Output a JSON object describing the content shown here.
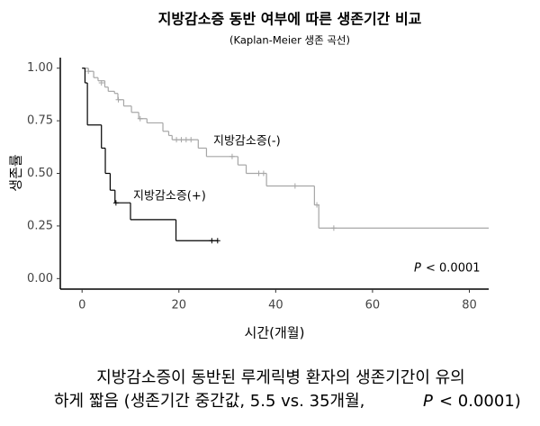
{
  "chart_data": {
    "type": "step",
    "title": "지방감소증 동반 여부에 따른 생존기간 비교",
    "subtitle": "(Kaplan-Meier 생존 곡선)",
    "x_label": "시간(개월)",
    "y_label": "생존률",
    "xlim": [
      -4.5,
      84
    ],
    "ylim": [
      -0.05,
      1.05
    ],
    "xticks": [
      0,
      20,
      40,
      60,
      80
    ],
    "yticks": [
      {
        "value": 0,
        "label": "0.00"
      },
      {
        "value": 0.25,
        "label": "0.25"
      },
      {
        "value": 0.5,
        "label": "0.50"
      },
      {
        "value": 0.75,
        "label": "0.75"
      },
      {
        "value": 1,
        "label": "1.00"
      }
    ],
    "series": [
      {
        "name": "지방감소증(-)",
        "color": "#a6a6a6",
        "x": [
          0,
          1.3,
          2.4,
          3.3,
          4.7,
          5.4,
          6.7,
          7.4,
          8.6,
          10.2,
          11.7,
          13.4,
          16.7,
          17.9,
          18.6,
          24,
          25.7,
          32.2,
          33.9,
          38.1,
          48,
          48.9,
          84
        ],
        "values": [
          1,
          0.985,
          0.955,
          0.94,
          0.91,
          0.89,
          0.88,
          0.85,
          0.82,
          0.79,
          0.76,
          0.74,
          0.7,
          0.68,
          0.66,
          0.62,
          0.58,
          0.54,
          0.5,
          0.44,
          0.35,
          0.24,
          0.24
        ],
        "censor_x": [
          1.3,
          4,
          7.5,
          12,
          19.5,
          20.5,
          21.5,
          22.5,
          31,
          36.5,
          37.5,
          44,
          48.5,
          52
        ],
        "censor_y": [
          0.985,
          0.93,
          0.85,
          0.76,
          0.66,
          0.66,
          0.66,
          0.66,
          0.58,
          0.5,
          0.5,
          0.44,
          0.35,
          0.24
        ]
      },
      {
        "name": "지방감소증(+)",
        "color": "#000000",
        "x": [
          0,
          0.6,
          1.1,
          4,
          4.8,
          5.8,
          6.8,
          10,
          19.4,
          28
        ],
        "values": [
          1,
          0.93,
          0.73,
          0.62,
          0.5,
          0.42,
          0.36,
          0.28,
          0.18,
          0.18
        ],
        "censor_x": [
          7,
          26.8,
          28
        ],
        "censor_y": [
          0.36,
          0.18,
          0.18
        ]
      }
    ],
    "p_symbol": "P",
    "p_text": "< 0.0001",
    "caption": [
      "지방감소증이 동반된 루게릭병 환자의 생존기간이 유의",
      "하게 짧음 (생존기간 중간값, 5.5 vs. 35개월,",
      "P",
      "< 0.0001)"
    ]
  }
}
